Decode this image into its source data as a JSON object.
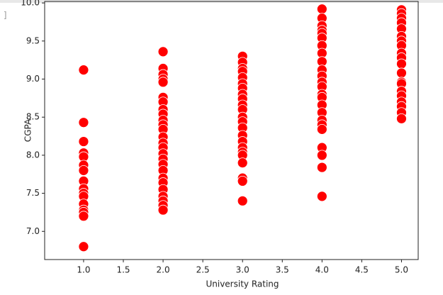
{
  "cell_prompt": "]",
  "chart_data": {
    "type": "scatter",
    "xlabel": "University Rating",
    "ylabel": "CGPA",
    "color": "#ff0000",
    "edgecolor": "#ffffff",
    "xlim": [
      0.51,
      5.21
    ],
    "ylim": [
      6.63,
      10.02
    ],
    "xticks": [
      {
        "value": 1,
        "label": "1.0"
      },
      1.5,
      {
        "value": 2,
        "label": "2.0"
      },
      2.5,
      {
        "value": 3,
        "label": "3.0"
      },
      3.5,
      {
        "value": 4,
        "label": "4.0"
      },
      4.5,
      {
        "value": 5,
        "label": "5.0"
      }
    ],
    "yticks": [
      {
        "value": 7,
        "label": "7.0"
      },
      7.5,
      {
        "value": 8,
        "label": "8.0"
      },
      8.5,
      {
        "value": 9,
        "label": "9.0"
      },
      9.5,
      {
        "value": 10,
        "label": "10.0"
      }
    ],
    "x": [
      1,
      1,
      1,
      1,
      1,
      1,
      1,
      1,
      1,
      1,
      1,
      1,
      1,
      1,
      1,
      1,
      2,
      2,
      2,
      2,
      2,
      2,
      2,
      2,
      2,
      2,
      2,
      2,
      2,
      2,
      2,
      2,
      2,
      2,
      2,
      2,
      2,
      2,
      2,
      2,
      2,
      2,
      3,
      3,
      3,
      3,
      3,
      3,
      3,
      3,
      3,
      3,
      3,
      3,
      3,
      3,
      3,
      3,
      3,
      3,
      3,
      3,
      3,
      3,
      3,
      4,
      4,
      4,
      4,
      4,
      4,
      4,
      4,
      4,
      4,
      4,
      4,
      4,
      4,
      4,
      4,
      4,
      4,
      4,
      4,
      4,
      4,
      4,
      4,
      5,
      5,
      5,
      5,
      5,
      5,
      5,
      5,
      5,
      5,
      5,
      5,
      5,
      5,
      5,
      5,
      5,
      5,
      5,
      5
    ],
    "y": [
      9.12,
      8.43,
      8.18,
      8.03,
      7.98,
      7.87,
      7.8,
      7.66,
      7.56,
      7.5,
      7.46,
      7.36,
      7.28,
      7.25,
      7.2,
      6.8,
      9.36,
      9.14,
      9.06,
      9.0,
      8.96,
      8.76,
      8.7,
      8.6,
      8.54,
      8.46,
      8.4,
      8.34,
      8.24,
      8.16,
      8.1,
      8.02,
      7.95,
      7.88,
      7.8,
      7.7,
      7.64,
      7.55,
      7.46,
      7.4,
      7.34,
      7.28,
      9.3,
      9.22,
      9.14,
      9.1,
      9.02,
      8.94,
      8.88,
      8.8,
      8.74,
      8.66,
      8.6,
      8.5,
      8.44,
      8.36,
      8.26,
      8.18,
      8.1,
      8.04,
      8.0,
      7.9,
      7.7,
      7.66,
      7.4,
      9.92,
      9.8,
      9.7,
      9.64,
      9.6,
      9.54,
      9.44,
      9.34,
      9.23,
      9.12,
      9.04,
      8.96,
      8.9,
      8.8,
      8.76,
      8.66,
      8.56,
      8.46,
      8.4,
      8.34,
      8.1,
      8.0,
      7.84,
      7.46,
      9.91,
      9.86,
      9.8,
      9.74,
      9.66,
      9.56,
      9.5,
      9.44,
      9.34,
      9.28,
      9.2,
      9.08,
      8.96,
      8.94,
      8.84,
      8.78,
      8.7,
      8.64,
      8.56,
      8.48
    ]
  }
}
